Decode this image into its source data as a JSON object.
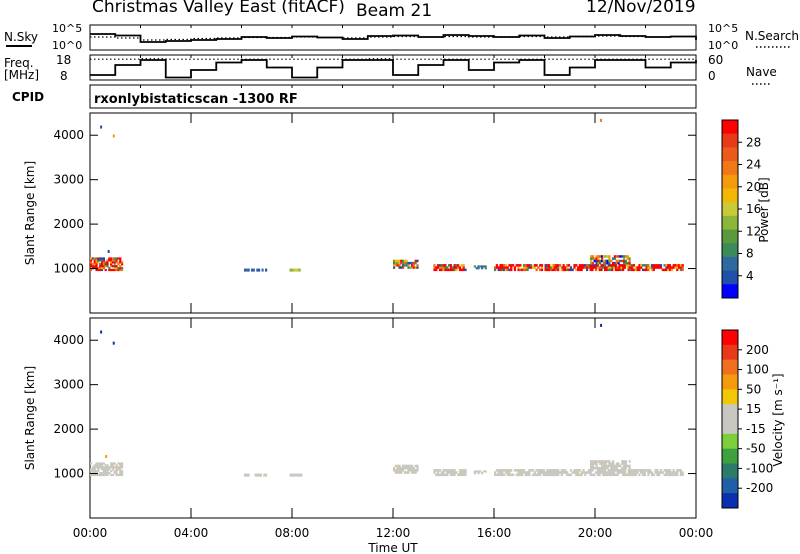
{
  "header": {
    "title": "Christmas Valley East (fitACF)",
    "beam": "Beam 21",
    "date": "12/Nov/2019"
  },
  "labels": {
    "nsky": "N.Sky",
    "nsearch": "N.Search",
    "freq": "Freq.",
    "freq_unit": "[MHz]",
    "nave": "Nave",
    "cpid": "CPID",
    "cpid_value": "rxonlybistaticscan -1300 RF",
    "noise_tick_top": "10^5",
    "noise_tick_bottom": "10^0",
    "freq_tick_top": "18",
    "freq_tick_bottom": "8",
    "nave_tick_top": "60",
    "nave_tick_bottom": "0"
  },
  "chart_data": [
    {
      "type": "line",
      "panel": "noise",
      "x": [
        "00:00",
        "01:00",
        "02:00",
        "03:00",
        "04:00",
        "05:00",
        "06:00",
        "07:00",
        "08:00",
        "09:00",
        "10:00",
        "11:00",
        "12:00",
        "13:00",
        "14:00",
        "15:00",
        "16:00",
        "17:00",
        "18:00",
        "19:00",
        "20:00",
        "21:00",
        "22:00",
        "23:00",
        "24:00"
      ],
      "series": [
        {
          "name": "N.Sky",
          "style": "solid",
          "values": [
            3.2,
            2.9,
            1.6,
            1.8,
            2.0,
            2.2,
            2.6,
            2.4,
            2.7,
            2.5,
            2.2,
            2.8,
            2.9,
            2.6,
            3.0,
            2.8,
            2.6,
            2.9,
            2.4,
            2.7,
            3.0,
            2.8,
            2.6,
            2.7,
            2.0
          ]
        },
        {
          "name": "N.Search",
          "style": "dotted",
          "values": [
            2.6,
            2.4,
            2.0,
            2.1,
            2.3,
            2.4,
            2.5,
            2.5,
            2.6,
            2.5,
            2.4,
            2.6,
            2.7,
            2.6,
            2.7,
            2.6,
            2.6,
            2.7,
            2.6,
            2.7,
            2.8,
            2.7,
            2.6,
            2.7,
            2.6
          ]
        }
      ],
      "ylim": [
        0,
        5
      ]
    },
    {
      "type": "line",
      "panel": "freq_nave",
      "x": [
        "00:00",
        "01:00",
        "02:00",
        "03:00",
        "04:00",
        "05:00",
        "06:00",
        "07:00",
        "08:00",
        "09:00",
        "10:00",
        "11:00",
        "12:00",
        "13:00",
        "14:00",
        "15:00",
        "16:00",
        "17:00",
        "18:00",
        "19:00",
        "20:00",
        "21:00",
        "22:00",
        "23:00",
        "24:00"
      ],
      "series": [
        {
          "name": "Freq.",
          "style": "solid",
          "values": [
            10,
            14,
            16,
            9,
            12,
            15,
            16,
            13,
            9,
            13,
            16,
            16,
            10,
            14,
            16,
            12,
            15,
            16,
            10,
            13,
            16,
            16,
            13,
            15,
            16
          ]
        },
        {
          "name": "Nave",
          "style": "dotted",
          "values": [
            50,
            50,
            51,
            50,
            50,
            50,
            50,
            50,
            50,
            50,
            50,
            51,
            50,
            50,
            50,
            50,
            50,
            50,
            50,
            50,
            50,
            50,
            50,
            50,
            50
          ]
        }
      ],
      "ylim_left": [
        8,
        18
      ],
      "ylim_right": [
        0,
        60
      ]
    },
    {
      "type": "heatmap",
      "panel": "power",
      "xlabel": "",
      "ylabel": "Slant Range [km]",
      "xlim": [
        0,
        24
      ],
      "ylim": [
        0,
        4500
      ],
      "yticks": [
        "1000",
        "2000",
        "3000",
        "4000"
      ],
      "colorbar": {
        "label": "Power [dB]",
        "ticks": [
          "28",
          "24",
          "20",
          "16",
          "12",
          "8",
          "4"
        ],
        "colors": [
          "#0000ff",
          "#1f4fa8",
          "#2c6aa0",
          "#3a8a5a",
          "#5b9a3c",
          "#8cb63a",
          "#c9c93a",
          "#f2b705",
          "#f59a0c",
          "#f07818",
          "#ea5a1a",
          "#e83a18",
          "#ff0000"
        ]
      },
      "points": [
        {
          "t": 0.4,
          "r": 4150,
          "c": 1
        },
        {
          "t": 0.9,
          "r": 3950,
          "c": 8
        },
        {
          "t": 20.2,
          "r": 4300,
          "c": 9
        },
        {
          "t": 0.7,
          "r": 1350,
          "c": 1
        }
      ],
      "blocks": [
        {
          "t0": 0.0,
          "t1": 1.3,
          "r0": 950,
          "r1": 1250,
          "palette": "mixed_hot"
        },
        {
          "t0": 6.1,
          "t1": 7.0,
          "r0": 940,
          "r1": 1000,
          "palette": "blue"
        },
        {
          "t0": 7.9,
          "t1": 8.4,
          "r0": 940,
          "r1": 1000,
          "palette": "green_yellow"
        },
        {
          "t0": 12.0,
          "t1": 13.0,
          "r0": 1000,
          "r1": 1200,
          "palette": "mixed"
        },
        {
          "t0": 13.6,
          "t1": 14.9,
          "r0": 950,
          "r1": 1100,
          "palette": "mixed_hot"
        },
        {
          "t0": 15.2,
          "t1": 15.7,
          "r0": 990,
          "r1": 1070,
          "palette": "blue_green"
        },
        {
          "t0": 16.0,
          "t1": 23.5,
          "r0": 950,
          "r1": 1100,
          "palette": "red_dominant"
        },
        {
          "t0": 19.8,
          "t1": 21.4,
          "r0": 1100,
          "r1": 1300,
          "palette": "mixed"
        }
      ]
    },
    {
      "type": "heatmap",
      "panel": "velocity",
      "xlabel": "Time UT",
      "ylabel": "Slant Range [km]",
      "xlim": [
        0,
        24
      ],
      "ylim": [
        0,
        4500
      ],
      "xticks": [
        "00:00",
        "04:00",
        "08:00",
        "12:00",
        "16:00",
        "20:00",
        "00:00"
      ],
      "yticks": [
        "1000",
        "2000",
        "3000",
        "4000"
      ],
      "colorbar": {
        "label": "Velocity [m s⁻¹]",
        "ticks": [
          "200",
          "100",
          "50",
          "15",
          "-15",
          "-50",
          "-100",
          "-200"
        ],
        "colors": [
          "#0a2fb0",
          "#1f5fa8",
          "#2d7a6a",
          "#3fa040",
          "#7ccf3a",
          "#c8c8c0",
          "#c8c8c0",
          "#f2c705",
          "#f59a0c",
          "#f07020",
          "#e83a18",
          "#ff0000"
        ]
      },
      "points": [
        {
          "t": 0.4,
          "r": 4150,
          "c": 0
        },
        {
          "t": 0.9,
          "r": 3900,
          "c": 0
        },
        {
          "t": 20.2,
          "r": 4300,
          "c": 0
        },
        {
          "t": 0.6,
          "r": 1350,
          "c": 8
        }
      ],
      "blocks": [
        {
          "t0": 0.0,
          "t1": 1.3,
          "r0": 950,
          "r1": 1250,
          "palette": "grey"
        },
        {
          "t0": 6.1,
          "t1": 7.0,
          "r0": 940,
          "r1": 1000,
          "palette": "grey"
        },
        {
          "t0": 7.9,
          "t1": 8.4,
          "r0": 940,
          "r1": 1000,
          "palette": "grey"
        },
        {
          "t0": 12.0,
          "t1": 13.0,
          "r0": 1000,
          "r1": 1200,
          "palette": "grey"
        },
        {
          "t0": 13.6,
          "t1": 14.9,
          "r0": 950,
          "r1": 1100,
          "palette": "grey"
        },
        {
          "t0": 15.2,
          "t1": 15.7,
          "r0": 990,
          "r1": 1070,
          "palette": "grey"
        },
        {
          "t0": 16.0,
          "t1": 23.5,
          "r0": 950,
          "r1": 1100,
          "palette": "grey"
        },
        {
          "t0": 19.8,
          "t1": 21.4,
          "r0": 1100,
          "r1": 1300,
          "palette": "grey"
        }
      ]
    }
  ]
}
